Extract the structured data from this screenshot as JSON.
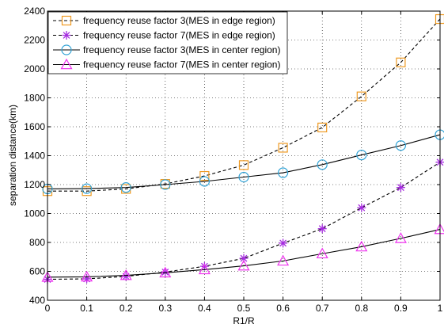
{
  "chart_data": {
    "type": "line",
    "title": "",
    "xlabel": "R1/R",
    "ylabel": "separation distance(km)",
    "xlim": [
      0,
      1
    ],
    "ylim": [
      400,
      2400
    ],
    "x": [
      0,
      0.1,
      0.2,
      0.3,
      0.4,
      0.5,
      0.6,
      0.7,
      0.8,
      0.9,
      1
    ],
    "xticks": [
      "0",
      "0.1",
      "0.2",
      "0.3",
      "0.4",
      "0.5",
      "0.6",
      "0.7",
      "0.8",
      "0.9",
      "1"
    ],
    "yticks": [
      "400",
      "600",
      "800",
      "1000",
      "1200",
      "1400",
      "1600",
      "1800",
      "2000",
      "2200",
      "2400"
    ],
    "grid": true,
    "legend_position": "top-left",
    "series": [
      {
        "name": "frequency reuse factor 3(MES in edge region)",
        "color": "#ee9a22",
        "marker": "square",
        "line_style": "dashed",
        "values": [
          1155,
          1155,
          1170,
          1205,
          1260,
          1335,
          1455,
          1595,
          1810,
          2045,
          2345
        ]
      },
      {
        "name": "frequency reuse factor 7(MES in edge region)",
        "color": "#a62ce0",
        "marker": "asterisk",
        "line_style": "dashed",
        "values": [
          545,
          548,
          565,
          595,
          635,
          690,
          795,
          895,
          1040,
          1180,
          1355
        ]
      },
      {
        "name": "frequency reuse factor 3(MES in center region)",
        "color": "#33a3d6",
        "marker": "circle",
        "line_style": "solid",
        "values": [
          1170,
          1172,
          1180,
          1200,
          1222,
          1252,
          1282,
          1338,
          1405,
          1470,
          1545
        ]
      },
      {
        "name": "frequency reuse factor 7(MES in center region)",
        "color": "#ee33ee",
        "marker": "triangle",
        "line_style": "solid",
        "values": [
          560,
          562,
          572,
          590,
          612,
          638,
          672,
          722,
          770,
          828,
          890
        ]
      }
    ]
  }
}
